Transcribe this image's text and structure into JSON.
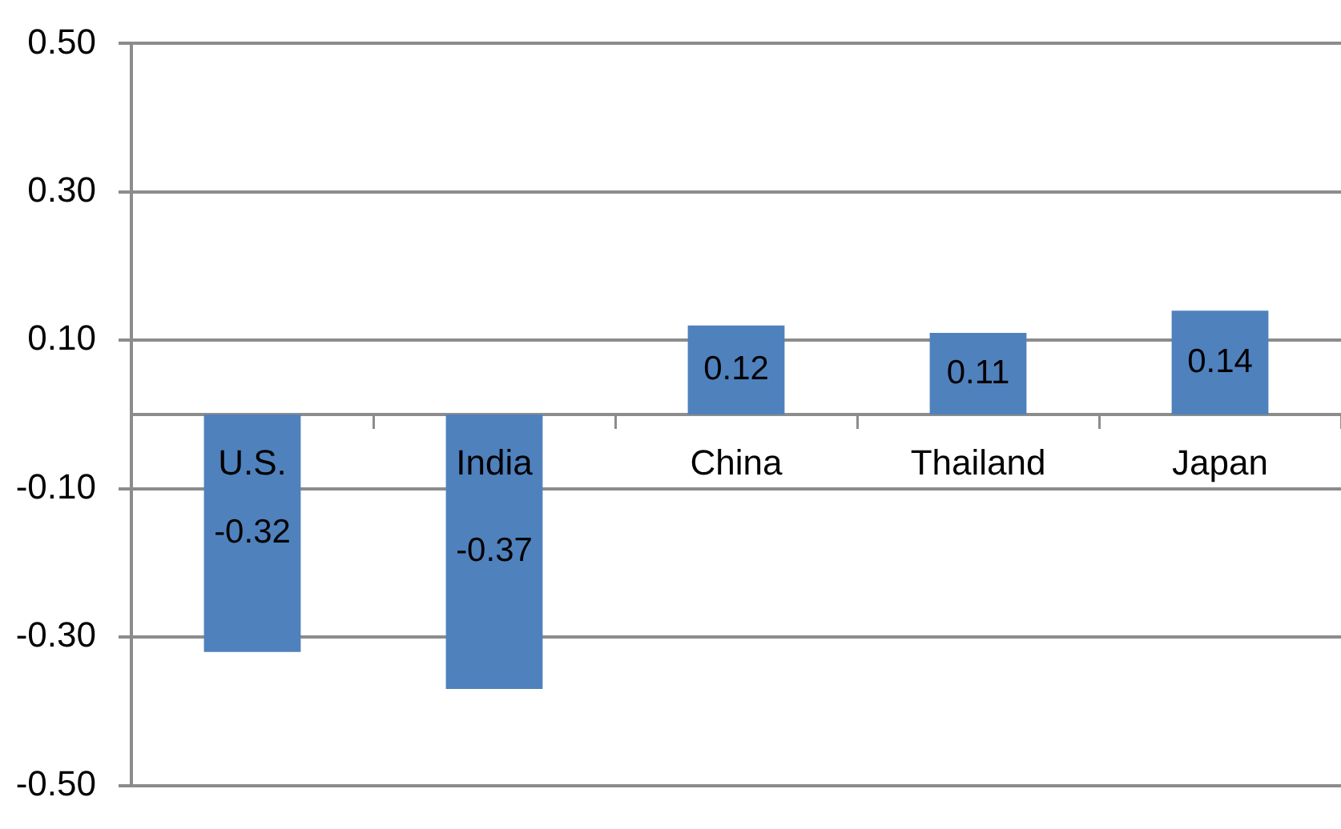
{
  "chart_data": {
    "type": "bar",
    "categories": [
      "U.S.",
      "India",
      "China",
      "Thailand",
      "Japan"
    ],
    "values": [
      -0.32,
      -0.37,
      0.12,
      0.11,
      0.14
    ],
    "color": "#4f81bd",
    "ylim": [
      -0.5,
      0.5
    ],
    "yticks": [
      {
        "value": -0.5,
        "label": "-0.50"
      },
      {
        "value": -0.3,
        "label": "-0.30"
      },
      {
        "value": -0.1,
        "label": "-0.10"
      },
      {
        "value": 0.1,
        "label": "0.10"
      },
      {
        "value": 0.3,
        "label": "0.30"
      },
      {
        "value": 0.5,
        "label": "0.50"
      }
    ],
    "grid": "y",
    "data_labels": true
  }
}
